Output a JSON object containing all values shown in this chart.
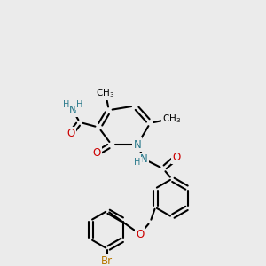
{
  "background_color": "#ebebeb",
  "bond_color": "#000000",
  "bond_width": 1.5,
  "atom_colors": {
    "N": "#2a7a8c",
    "O": "#cc0000",
    "Br": "#b87800",
    "C": "#000000",
    "H": "#2a7a8c"
  },
  "font_size": 7.5,
  "figsize": [
    3.0,
    3.0
  ],
  "dpi": 100
}
